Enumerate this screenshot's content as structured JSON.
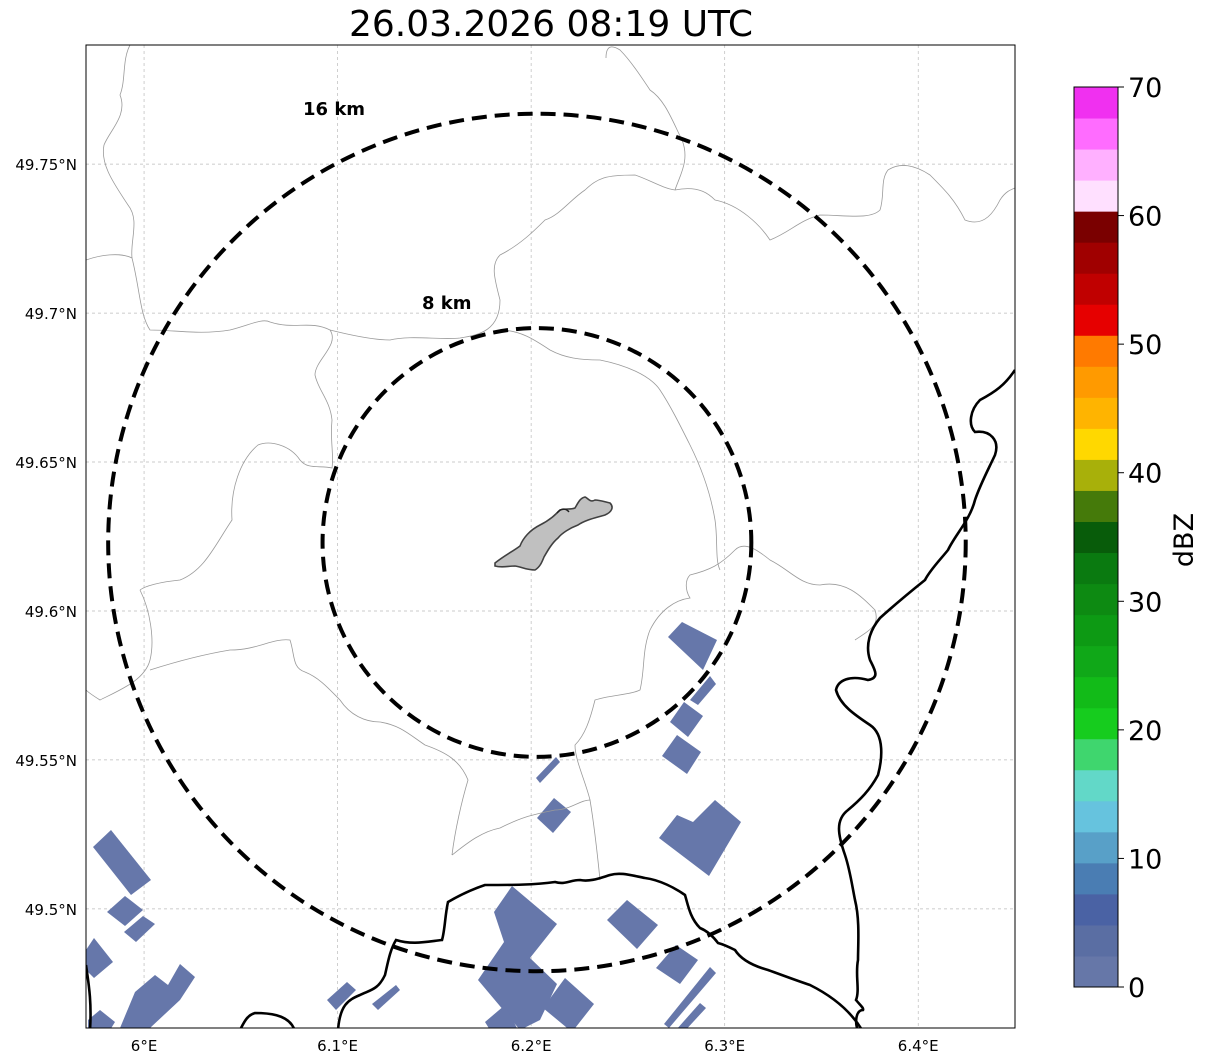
{
  "title": "26.03.2026 08:19 UTC",
  "map": {
    "lon_range": [
      5.97,
      6.45
    ],
    "lat_range": [
      49.46,
      49.79
    ],
    "lon_ticks": [
      {
        "value": 6.0,
        "label": "6°E"
      },
      {
        "value": 6.1,
        "label": "6.1°E"
      },
      {
        "value": 6.2,
        "label": "6.2°E"
      },
      {
        "value": 6.3,
        "label": "6.3°E"
      },
      {
        "value": 6.4,
        "label": "6.4°E"
      }
    ],
    "lat_ticks": [
      {
        "value": 49.5,
        "label": "49.5°N"
      },
      {
        "value": 49.55,
        "label": "49.55°N"
      },
      {
        "value": 49.6,
        "label": "49.6°N"
      },
      {
        "value": 49.65,
        "label": "49.65°N"
      },
      {
        "value": 49.7,
        "label": "49.7°N"
      },
      {
        "value": 49.75,
        "label": "49.75°N"
      }
    ],
    "radar_center": {
      "lon": 6.203,
      "lat": 49.623
    },
    "range_rings": [
      {
        "radius_km": 8,
        "label": "8 km"
      },
      {
        "radius_km": 16,
        "label": "16 km"
      }
    ],
    "echo_color": "#6677aa"
  },
  "colorbar": {
    "label": "dBZ",
    "ticks": [
      "0",
      "10",
      "20",
      "30",
      "40",
      "50",
      "60",
      "70"
    ],
    "colors": [
      "#6677a8",
      "#5a6ea3",
      "#4a62a4",
      "#4a7db3",
      "#58a0c8",
      "#66c3de",
      "#62d8c8",
      "#3fd66e",
      "#16cc1e",
      "#12bb18",
      "#10a818",
      "#0d9a14",
      "#0d8a12",
      "#0a7a10",
      "#085c0a",
      "#457a0a",
      "#a8b00a",
      "#ffd800",
      "#ffb400",
      "#ff9a00",
      "#ff7a00",
      "#e60000",
      "#c00000",
      "#a00000",
      "#7a0000",
      "#ffe0ff",
      "#ffb0ff",
      "#ff6cff",
      "#f030f0"
    ]
  }
}
